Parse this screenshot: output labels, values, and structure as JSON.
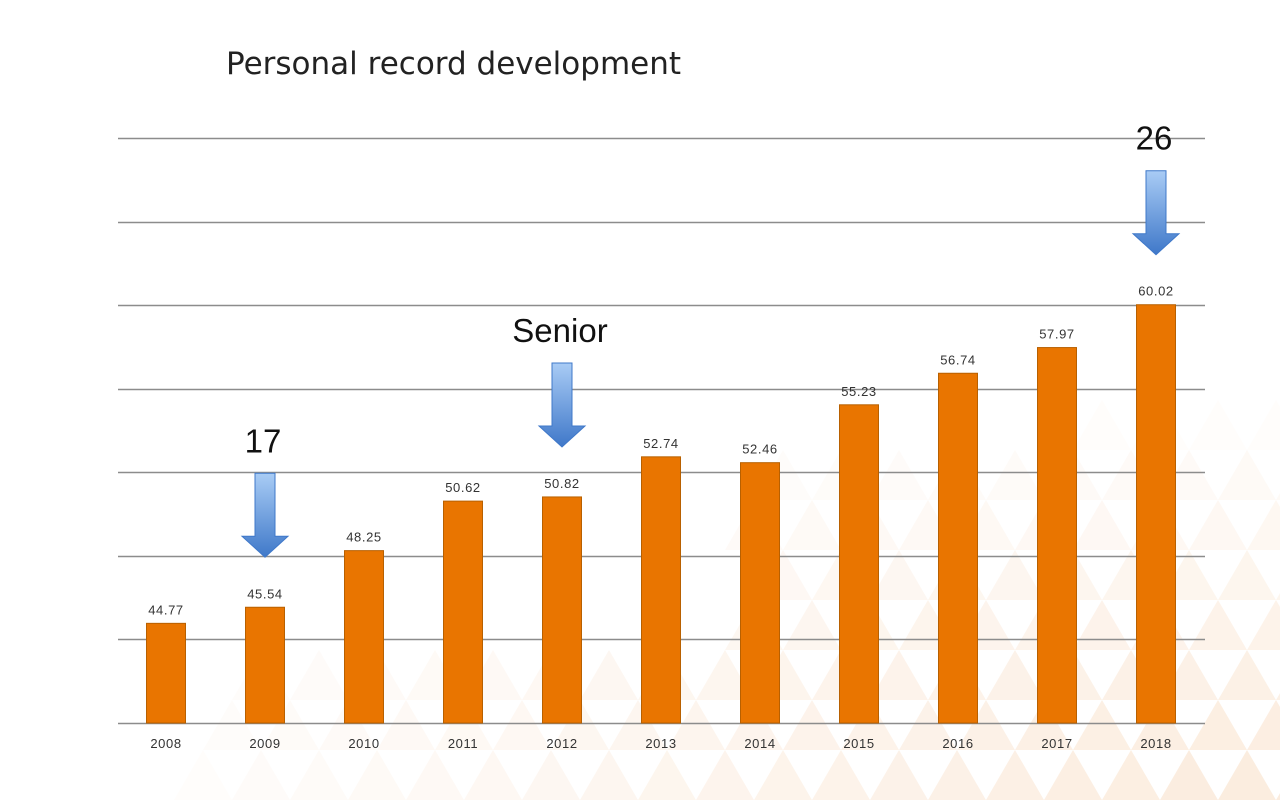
{
  "colors": {
    "bar": "#e97500",
    "bar_stroke": "#b86000",
    "grid": "#8c8c8c",
    "text": "#333333",
    "arrow_top": "#a9ccf5",
    "arrow_bottom": "#3f78c9",
    "decor": "#f8dcc2"
  },
  "chart_data": {
    "type": "bar",
    "title": "Personal record development",
    "xlabel": "",
    "ylabel": "",
    "ylim": [
      40,
      68
    ],
    "grid": true,
    "categories": [
      "2008",
      "2009",
      "2010",
      "2011",
      "2012",
      "2013",
      "2014",
      "2015",
      "2016",
      "2017",
      "2018"
    ],
    "values": [
      44.77,
      45.54,
      48.25,
      50.62,
      50.82,
      52.74,
      52.46,
      55.23,
      56.74,
      57.97,
      60.02
    ],
    "data_labels": [
      "44.77",
      "45.54",
      "48.25",
      "50.62",
      "50.82",
      "52.74",
      "52.46",
      "55.23",
      "56.74",
      "57.97",
      "60.02"
    ],
    "annotations": [
      {
        "label": "17",
        "category": "2009",
        "icon": "arrow-down-icon"
      },
      {
        "label": "Senior",
        "category": "2012",
        "icon": "arrow-down-icon"
      },
      {
        "label": "26",
        "category": "2018",
        "icon": "arrow-down-icon"
      }
    ]
  }
}
